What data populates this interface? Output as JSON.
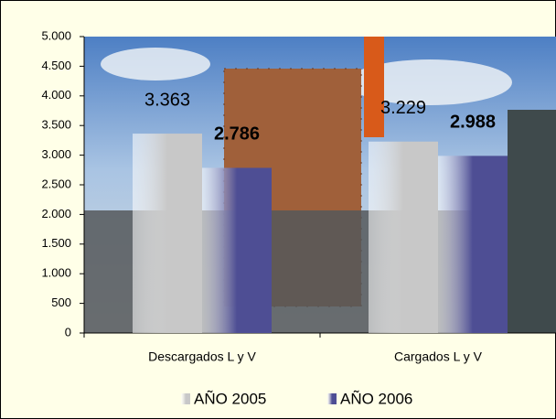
{
  "chart_data": {
    "type": "bar",
    "categories": [
      "Descargados L y V",
      "Cargados L y V"
    ],
    "series": [
      {
        "name": "AÑO 2005",
        "color": "#c8c8c8",
        "values": [
          3363,
          3229
        ],
        "value_labels": [
          "3.363",
          "3.229"
        ]
      },
      {
        "name": "AÑO 2006",
        "color": "#4e4e94",
        "values": [
          2786,
          2988
        ],
        "value_labels": [
          "2.786",
          "2.988"
        ]
      }
    ],
    "ylim": [
      0,
      5000
    ],
    "yticks": [
      0,
      500,
      {
        "value": 1000,
        "label": "1.000"
      },
      {
        "value": 1500,
        "label": "1.500"
      },
      {
        "value": 2000,
        "label": "2.000"
      },
      {
        "value": 2500,
        "label": "2.500"
      },
      {
        "value": 3000,
        "label": "3.000"
      },
      {
        "value": 3500,
        "label": "3.500"
      },
      {
        "value": 4000,
        "label": "4.000"
      },
      {
        "value": 4500,
        "label": "4.500"
      },
      {
        "value": 5000,
        "label": "5.000"
      }
    ],
    "grid": false
  }
}
